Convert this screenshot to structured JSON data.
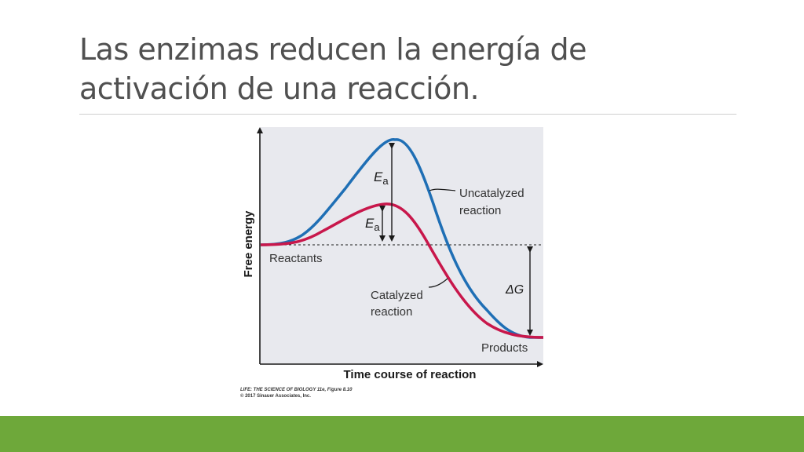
{
  "slide": {
    "title": "Las enzimas reducen la energía de activación de una reacción."
  },
  "chart_data": {
    "type": "line",
    "xlabel": "Time course of reaction",
    "ylabel": "Free energy",
    "ylim": [
      0,
      100
    ],
    "xlim": [
      0,
      100
    ],
    "series": [
      {
        "name": "Uncatalyzed reaction",
        "color": "#1f6fb5",
        "points": [
          [
            0,
            54
          ],
          [
            10,
            56
          ],
          [
            20,
            64
          ],
          [
            30,
            82
          ],
          [
            40,
            96
          ],
          [
            46,
            100
          ],
          [
            52,
            98
          ],
          [
            60,
            80
          ],
          [
            70,
            44
          ],
          [
            80,
            24
          ],
          [
            90,
            14
          ],
          [
            96,
            12
          ],
          [
            100,
            12
          ]
        ]
      },
      {
        "name": "Catalyzed reaction",
        "color": "#c8174b",
        "points": [
          [
            0,
            54
          ],
          [
            10,
            55
          ],
          [
            20,
            60
          ],
          [
            30,
            68
          ],
          [
            40,
            75
          ],
          [
            46,
            76
          ],
          [
            52,
            74
          ],
          [
            60,
            66
          ],
          [
            70,
            48
          ],
          [
            80,
            30
          ],
          [
            90,
            18
          ],
          [
            96,
            13
          ],
          [
            100,
            12
          ]
        ]
      }
    ],
    "annotations": {
      "uncatalyzed_label_line1": "Uncatalyzed",
      "uncatalyzed_label_line2": "reaction",
      "catalyzed_label_line1": "Catalyzed",
      "catalyzed_label_line2": "reaction",
      "reactants": "Reactants",
      "products": "Products",
      "ea_symbol": "E",
      "ea_subscript": "a",
      "delta_g": "ΔG"
    },
    "grid": false,
    "background": "#e8e9ee"
  },
  "credit": {
    "line1": "LIFE: THE SCIENCE OF BIOLOGY 11e, Figure 8.10",
    "line2": "© 2017 Sinauer Associates, Inc."
  },
  "theme": {
    "accent_bar": "#6ea83a",
    "title_color": "#505050"
  }
}
